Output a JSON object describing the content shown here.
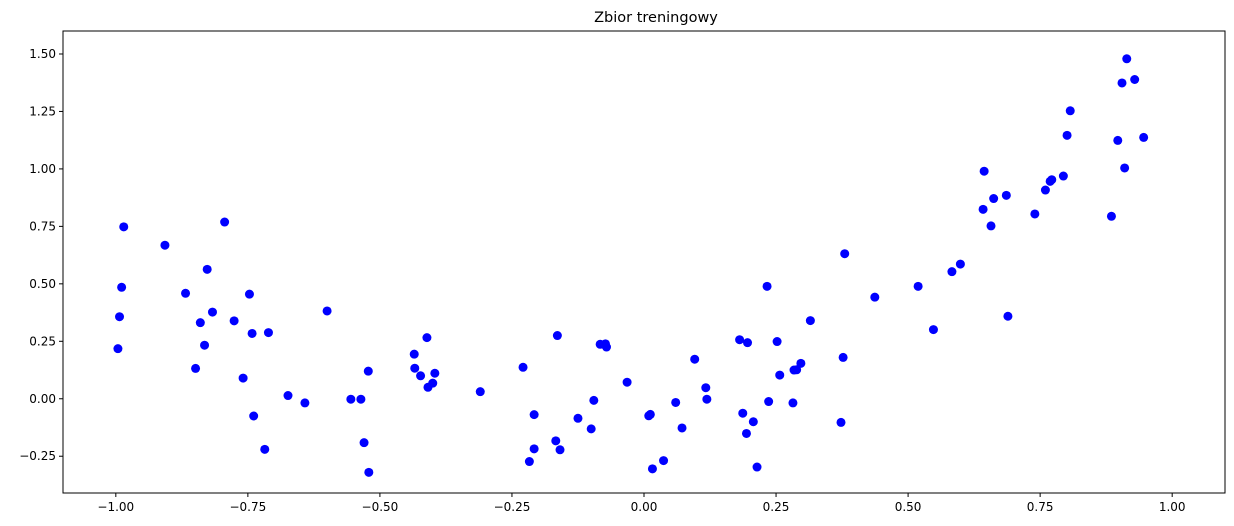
{
  "chart_data": {
    "type": "scatter",
    "title": "Zbior treningowy",
    "xlabel": "",
    "ylabel": "",
    "xlim": [
      -1.1,
      1.1
    ],
    "ylim": [
      -0.41,
      1.6
    ],
    "xticks": [
      -1.0,
      -0.75,
      -0.5,
      -0.25,
      0.0,
      0.25,
      0.5,
      0.75,
      1.0
    ],
    "xtick_labels": [
      "−1.00",
      "−0.75",
      "−0.50",
      "−0.25",
      "0.00",
      "0.25",
      "0.50",
      "0.75",
      "1.00"
    ],
    "yticks": [
      -0.25,
      0.0,
      0.25,
      0.5,
      0.75,
      1.0,
      1.25,
      1.5
    ],
    "ytick_labels": [
      "−0.25",
      "0.00",
      "0.25",
      "0.50",
      "0.75",
      "1.00",
      "1.25",
      "1.50"
    ],
    "grid": false,
    "series": [
      {
        "color": "#0000ff",
        "x": [
          -0.996,
          -0.993,
          -0.989,
          -0.985,
          -0.907,
          -0.868,
          -0.849,
          -0.84,
          -0.832,
          -0.827,
          -0.817,
          -0.794,
          -0.776,
          -0.759,
          -0.747,
          -0.742,
          -0.739,
          -0.718,
          -0.711,
          -0.674,
          -0.642,
          -0.6,
          -0.555,
          -0.536,
          -0.53,
          -0.521,
          -0.522,
          -0.435,
          -0.434,
          -0.423,
          -0.411,
          -0.409,
          -0.4,
          -0.396,
          -0.31,
          -0.229,
          -0.217,
          -0.208,
          -0.208,
          -0.167,
          -0.164,
          -0.159,
          -0.125,
          -0.1,
          -0.095,
          -0.083,
          -0.075,
          -0.073,
          -0.071,
          -0.032,
          0.009,
          0.012,
          0.016,
          0.037,
          0.06,
          0.072,
          0.096,
          0.117,
          0.119,
          0.181,
          0.187,
          0.194,
          0.196,
          0.207,
          0.214,
          0.233,
          0.236,
          0.252,
          0.257,
          0.282,
          0.284,
          0.289,
          0.297,
          0.315,
          0.373,
          0.377,
          0.38,
          0.437,
          0.519,
          0.548,
          0.583,
          0.599,
          0.642,
          0.644,
          0.657,
          0.662,
          0.686,
          0.689,
          0.74,
          0.76,
          0.769,
          0.772,
          0.794,
          0.801,
          0.807,
          0.885,
          0.897,
          0.905,
          0.91,
          0.914,
          0.929,
          0.946
        ],
        "y": [
          0.218,
          0.357,
          0.485,
          0.748,
          0.668,
          0.459,
          0.132,
          0.331,
          0.233,
          0.563,
          0.377,
          0.769,
          0.339,
          0.09,
          0.455,
          0.284,
          -0.075,
          -0.22,
          0.288,
          0.014,
          -0.018,
          0.382,
          -0.002,
          -0.002,
          -0.191,
          -0.32,
          0.12,
          0.194,
          0.133,
          0.1,
          0.266,
          0.05,
          0.068,
          0.111,
          0.031,
          0.137,
          -0.273,
          -0.218,
          -0.069,
          -0.183,
          0.275,
          -0.222,
          -0.085,
          -0.131,
          -0.007,
          0.237,
          0.236,
          0.239,
          0.225,
          0.072,
          -0.074,
          -0.068,
          -0.305,
          -0.269,
          -0.016,
          -0.127,
          0.172,
          0.048,
          -0.002,
          0.257,
          -0.063,
          -0.151,
          0.244,
          -0.1,
          -0.297,
          0.489,
          -0.012,
          0.249,
          0.103,
          -0.018,
          0.125,
          0.126,
          0.154,
          0.34,
          -0.103,
          0.18,
          0.631,
          0.442,
          0.489,
          0.301,
          0.553,
          0.586,
          0.824,
          0.99,
          0.752,
          0.871,
          0.885,
          0.359,
          0.804,
          0.908,
          0.946,
          0.953,
          0.969,
          1.146,
          1.253,
          0.794,
          1.124,
          1.374,
          1.004,
          1.479,
          1.389,
          1.137
        ]
      }
    ]
  }
}
